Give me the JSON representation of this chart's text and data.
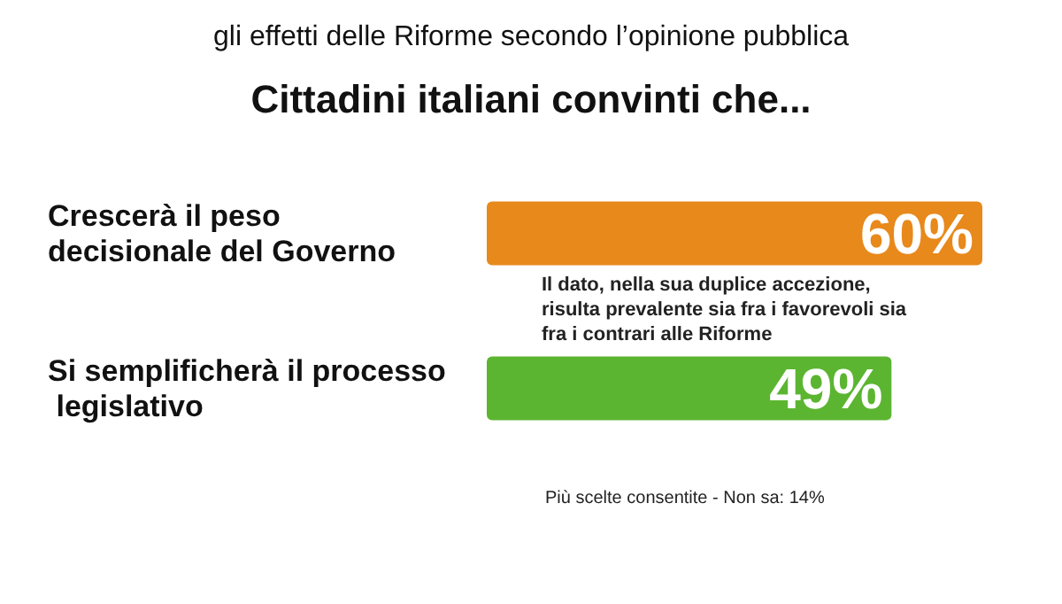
{
  "chart_data": {
    "type": "bar",
    "orientation": "horizontal",
    "title": "gli effetti delle Riforme secondo l’opinione pubblica",
    "subtitle": "Cittadini italiani convinti che...",
    "categories": [
      "Crescerà il peso decisionale del Governo",
      "Si semplificherà il processo legislativo"
    ],
    "values": [
      60,
      49
    ],
    "colors": [
      "#e8891c",
      "#5cb531"
    ],
    "value_labels": [
      "60%",
      "49%"
    ],
    "tick_labels": "y",
    "annotations": [
      "Il dato, nella sua duplice accezione, risulta prevalente sia fra i favorevoli sia fra i contrari alle Riforme",
      "Più scelte consentite - Non sa: 14%"
    ]
  }
}
